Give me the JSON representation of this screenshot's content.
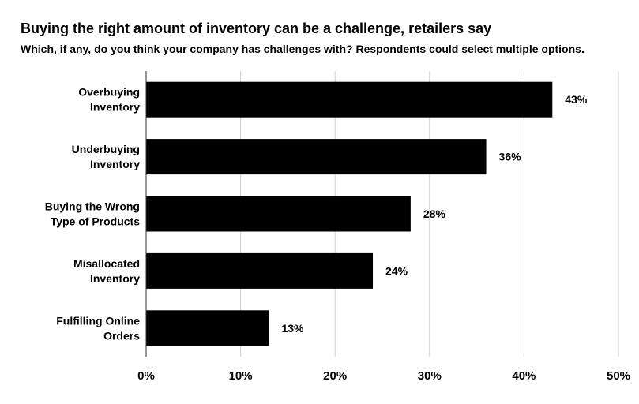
{
  "chart_data": {
    "type": "bar",
    "orientation": "horizontal",
    "title": "Buying the right amount of inventory can be a challenge, retailers say",
    "subtitle": "Which, if any, do you think your company has challenges with? Respondents could select multiple options.",
    "categories": [
      [
        "Overbuying",
        "Inventory"
      ],
      [
        "Underbuying",
        "Inventory"
      ],
      [
        "Buying the Wrong",
        "Type of Products"
      ],
      [
        "Misallocated",
        "Inventory"
      ],
      [
        "Fulfilling Online",
        "Orders"
      ]
    ],
    "values": [
      43,
      36,
      28,
      24,
      13
    ],
    "data_labels": [
      "43%",
      "36%",
      "28%",
      "24%",
      "13%"
    ],
    "xlim": [
      0,
      50
    ],
    "xticks": [
      0,
      10,
      20,
      30,
      40,
      50
    ],
    "xtick_labels": [
      "0%",
      "10%",
      "20%",
      "30%",
      "40%",
      "50%"
    ],
    "bar_color": "#000000",
    "grid_color": "#cccccc",
    "grid": true
  }
}
